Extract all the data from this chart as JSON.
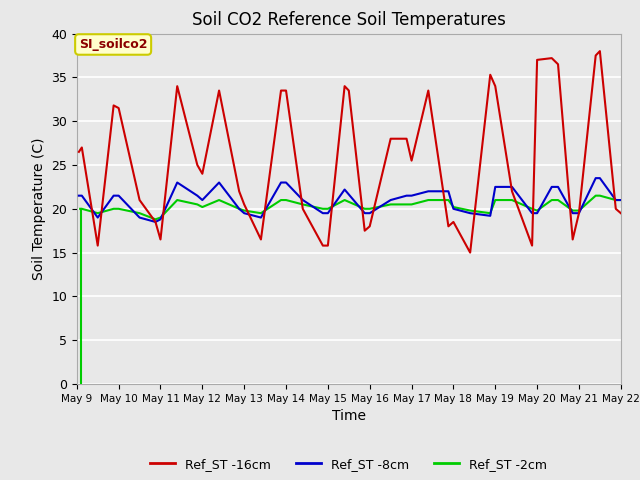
{
  "title": "Soil CO2 Reference Soil Temperatures",
  "xlabel": "Time",
  "ylabel": "Soil Temperature (C)",
  "annotation_text": "SI_soilco2",
  "annotation_bg": "#ffffcc",
  "annotation_border": "#cccc00",
  "ylim": [
    0,
    40
  ],
  "xlim": [
    0,
    13
  ],
  "bg_color": "#e8e8e8",
  "x_tick_labels": [
    "May 9",
    "May 10",
    "May 11",
    "May 12",
    "May 13",
    "May 14",
    "May 15",
    "May 16",
    "May 17",
    "May 18",
    "May 19",
    "May 20",
    "May 21",
    "May 22"
  ],
  "legend": [
    {
      "label": "Ref_ST -16cm",
      "color": "#cc0000"
    },
    {
      "label": "Ref_ST -8cm",
      "color": "#0000cc"
    },
    {
      "label": "Ref_ST -2cm",
      "color": "#00cc00"
    }
  ],
  "red_x": [
    0.05,
    0.12,
    0.5,
    0.88,
    1.0,
    1.5,
    1.88,
    2.0,
    2.4,
    2.88,
    3.0,
    3.4,
    3.88,
    4.0,
    4.4,
    4.88,
    5.0,
    5.4,
    5.88,
    6.0,
    6.4,
    6.5,
    6.88,
    7.0,
    7.5,
    7.88,
    8.0,
    8.4,
    8.88,
    9.0,
    9.4,
    9.88,
    10.0,
    10.4,
    10.88,
    11.0,
    11.35,
    11.5,
    11.85,
    12.0,
    12.4,
    12.5,
    12.88,
    13.0
  ],
  "red_y": [
    26.5,
    27.0,
    15.8,
    31.8,
    31.5,
    21.0,
    18.5,
    16.5,
    34.0,
    25.0,
    24.0,
    33.5,
    22.0,
    20.5,
    16.5,
    33.5,
    33.5,
    20.0,
    15.8,
    15.8,
    34.0,
    33.5,
    17.5,
    18.0,
    28.0,
    28.0,
    25.5,
    33.5,
    18.0,
    18.5,
    15.0,
    35.3,
    34.0,
    22.0,
    15.8,
    37.0,
    37.2,
    36.5,
    16.5,
    19.5,
    37.5,
    38.0,
    20.0,
    19.5
  ],
  "blue_x": [
    0.05,
    0.12,
    0.5,
    0.88,
    1.0,
    1.5,
    1.88,
    2.0,
    2.4,
    2.88,
    3.0,
    3.4,
    3.88,
    4.0,
    4.4,
    4.88,
    5.0,
    5.4,
    5.88,
    6.0,
    6.4,
    6.88,
    7.0,
    7.5,
    7.88,
    8.0,
    8.4,
    8.88,
    9.0,
    9.4,
    9.88,
    10.0,
    10.4,
    10.88,
    11.0,
    11.35,
    11.5,
    11.85,
    12.0,
    12.4,
    12.5,
    12.88,
    13.0
  ],
  "blue_y": [
    21.5,
    21.5,
    19.0,
    21.5,
    21.5,
    19.0,
    18.5,
    18.8,
    23.0,
    21.5,
    21.0,
    23.0,
    20.0,
    19.5,
    19.0,
    23.0,
    23.0,
    21.0,
    19.5,
    19.5,
    22.2,
    19.5,
    19.5,
    21.0,
    21.5,
    21.5,
    22.0,
    22.0,
    20.0,
    19.5,
    19.2,
    22.5,
    22.5,
    19.5,
    19.5,
    22.5,
    22.5,
    19.5,
    19.5,
    23.5,
    23.5,
    21.0,
    21.0
  ],
  "green_x": [
    0.08,
    0.12,
    0.5,
    0.88,
    1.0,
    1.5,
    1.88,
    2.0,
    2.4,
    2.88,
    3.0,
    3.4,
    3.88,
    4.0,
    4.4,
    4.88,
    5.0,
    5.4,
    5.88,
    6.0,
    6.4,
    6.88,
    7.0,
    7.5,
    7.88,
    8.0,
    8.4,
    8.88,
    9.0,
    9.4,
    9.88,
    10.0,
    10.4,
    10.88,
    11.0,
    11.35,
    11.5,
    11.85,
    12.0,
    12.4,
    12.5,
    12.88,
    13.0
  ],
  "green_y": [
    20.0,
    20.0,
    19.5,
    20.0,
    20.0,
    19.5,
    18.8,
    19.0,
    21.0,
    20.5,
    20.2,
    21.0,
    20.0,
    19.8,
    19.5,
    21.0,
    21.0,
    20.5,
    20.0,
    20.0,
    21.0,
    20.0,
    20.0,
    20.5,
    20.5,
    20.5,
    21.0,
    21.0,
    20.2,
    19.8,
    19.5,
    21.0,
    21.0,
    20.0,
    19.8,
    21.0,
    21.0,
    19.8,
    19.8,
    21.5,
    21.5,
    21.0,
    21.0
  ]
}
